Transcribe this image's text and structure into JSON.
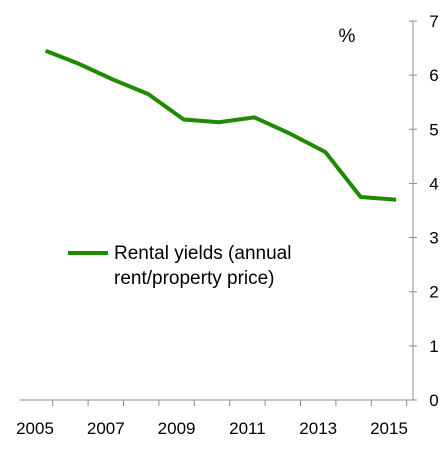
{
  "chart_data": {
    "type": "line",
    "unit_label": "%",
    "x": [
      2005.3,
      2006.2,
      2007.2,
      2008.2,
      2009.2,
      2010.2,
      2011.2,
      2012.2,
      2013.2,
      2014.2,
      2015.2
    ],
    "series": [
      {
        "name": "Rental yields (annual rent/property price)",
        "name_lines": [
          "Rental yields (annual",
          "rent/property price)"
        ],
        "values": [
          6.45,
          6.22,
          5.92,
          5.65,
          5.18,
          5.13,
          5.22,
          4.92,
          4.58,
          3.75,
          3.7
        ],
        "color": "#1e8a00"
      }
    ],
    "x_ticks": [
      2005,
      2007,
      2009,
      2011,
      2013,
      2015
    ],
    "x_range": [
      2004.5,
      2015.8
    ],
    "y_ticks": [
      0,
      1,
      2,
      3,
      4,
      5,
      6,
      7
    ],
    "ylim": [
      0,
      7
    ],
    "y_axis_side": "right",
    "grid": false,
    "legend_position": "center-left"
  }
}
